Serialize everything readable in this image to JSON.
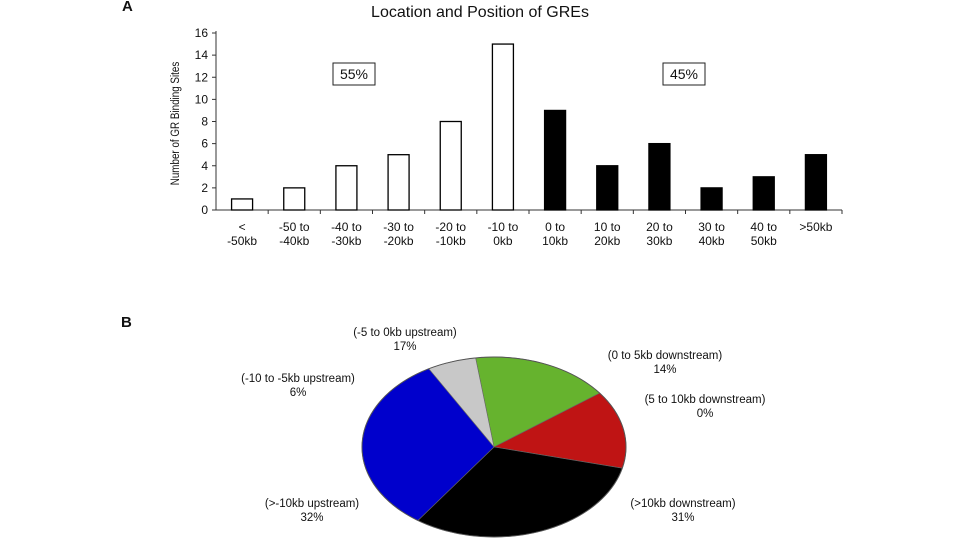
{
  "panel_a_label": "A",
  "panel_b_label": "B",
  "chart_data": [
    {
      "type": "bar",
      "title": "Location and Position of GREs",
      "ylabel": "Number of GR Binding Sites",
      "xlabel": "",
      "ylim": [
        0,
        16
      ],
      "yticks": [
        0,
        2,
        4,
        6,
        8,
        10,
        12,
        14,
        16
      ],
      "categories": [
        [
          "<",
          "-50kb"
        ],
        [
          "-50 to",
          "-40kb"
        ],
        [
          "-40 to",
          "-30kb"
        ],
        [
          "-30 to",
          "-20kb"
        ],
        [
          "-20 to",
          "-10kb"
        ],
        [
          "-10 to",
          "0kb"
        ],
        [
          "0 to",
          "10kb"
        ],
        [
          "10 to",
          "20kb"
        ],
        [
          "20 to",
          "30kb"
        ],
        [
          "30 to",
          "40kb"
        ],
        [
          "40 to",
          "50kb"
        ],
        [
          ">50kb"
        ]
      ],
      "values": [
        1,
        2,
        4,
        5,
        8,
        15,
        9,
        4,
        6,
        2,
        3,
        5
      ],
      "bar_fill": [
        "#ffffff",
        "#ffffff",
        "#ffffff",
        "#ffffff",
        "#ffffff",
        "#ffffff",
        "#000000",
        "#000000",
        "#000000",
        "#000000",
        "#000000",
        "#000000"
      ],
      "annotations": [
        "55%",
        "45%"
      ],
      "grid": false
    },
    {
      "type": "pie",
      "slices": [
        {
          "label": "(-5 to 0kb upstream)",
          "pct_label": "17%",
          "value": 17,
          "color": "#66b32e"
        },
        {
          "label": "(0 to 5kb downstream)",
          "pct_label": "14%",
          "value": 14,
          "color": "#bf1414"
        },
        {
          "label": "(5 to 10kb downstream)",
          "pct_label": "0%",
          "value": 0,
          "color": "#7a1010"
        },
        {
          "label": "(>10kb downstream)",
          "pct_label": "31%",
          "value": 31,
          "color": "#000000"
        },
        {
          "label": "(>-10kb upstream)",
          "pct_label": "32%",
          "value": 32,
          "color": "#0000cc"
        },
        {
          "label": "(-10 to -5kb upstream)",
          "pct_label": "6%",
          "value": 6,
          "color": "#c8c8c8"
        }
      ]
    }
  ]
}
